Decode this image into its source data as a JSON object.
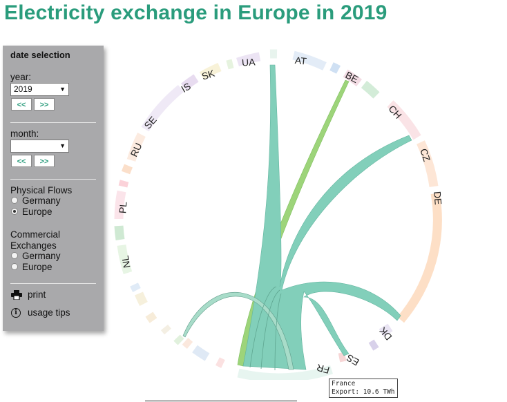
{
  "page": {
    "title": "Electricity exchange in Europe in 2019"
  },
  "panel": {
    "heading": "date selection",
    "year_label": "year:",
    "year_value": "2019",
    "month_label": "month:",
    "month_value": "",
    "prev_label": "<<",
    "next_label": ">>",
    "physical_flows_label": "Physical Flows",
    "physical_flows_options": [
      "Germany",
      "Europe"
    ],
    "physical_flows_selected": "Europe",
    "commercial_label_line1": "Commercial",
    "commercial_label_line2": "Exchanges",
    "commercial_options": [
      "Germany",
      "Europe"
    ],
    "commercial_selected": "",
    "print_label": "print",
    "usage_tips_label": "usage tips"
  },
  "chart": {
    "countries": [
      "UA",
      "AT",
      "BE",
      "CH",
      "CZ",
      "DE",
      "DK",
      "ES",
      "FR",
      "NL",
      "PL",
      "RU",
      "SE",
      "IS",
      "SK"
    ],
    "highlighted": "FR",
    "flow_color": "#7fcdb9",
    "flow_color_alt": "#9dd47a"
  },
  "tooltip": {
    "line1": "France",
    "line2": "Export: 10.6 TWh"
  }
}
